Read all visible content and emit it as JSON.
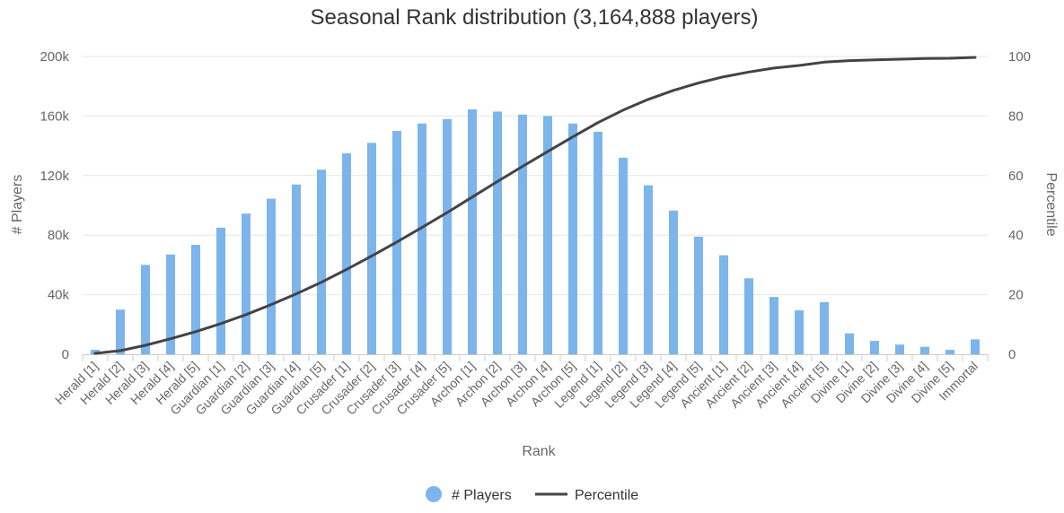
{
  "chart_data": {
    "type": "bar",
    "title": "Seasonal Rank distribution (3,164,888 players)",
    "xlabel": "Rank",
    "ylabel": "# Players",
    "y2label": "Percentile",
    "ylim": [
      0,
      200000
    ],
    "y2lim": [
      0,
      100
    ],
    "yticks": [
      "0",
      "40k",
      "80k",
      "120k",
      "160k",
      "200k"
    ],
    "y2ticks": [
      "0",
      "20",
      "40",
      "60",
      "80",
      "100"
    ],
    "legend_position": "bottom-center",
    "grid": true,
    "categories": [
      "Herald [1]",
      "Herald [2]",
      "Herald [3]",
      "Herald [4]",
      "Herald [5]",
      "Guardian [1]",
      "Guardian [2]",
      "Guardian [3]",
      "Guardian [4]",
      "Guardian [5]",
      "Crusader [1]",
      "Crusader [2]",
      "Crusader [3]",
      "Crusader [4]",
      "Crusader [5]",
      "Archon [1]",
      "Archon [2]",
      "Archon [3]",
      "Archon [4]",
      "Archon [5]",
      "Legend [1]",
      "Legend [2]",
      "Legend [3]",
      "Legend [4]",
      "Legend [5]",
      "Ancient [1]",
      "Ancient [2]",
      "Ancient [3]",
      "Ancient [4]",
      "Ancient [5]",
      "Divine [1]",
      "Divine [2]",
      "Divine [3]",
      "Divine [4]",
      "Divine [5]",
      "Immortal"
    ],
    "series": [
      {
        "name": "# Players",
        "kind": "bar",
        "axis": "left",
        "color": "#7cb5ec",
        "values": [
          3000,
          30000,
          60000,
          67000,
          73500,
          85000,
          94500,
          104500,
          114000,
          124000,
          135000,
          142000,
          150000,
          155000,
          158000,
          164500,
          163000,
          161000,
          160000,
          155000,
          149500,
          132000,
          113500,
          96500,
          79000,
          66500,
          51000,
          38500,
          29500,
          35000,
          14000,
          9000,
          6500,
          5000,
          3000,
          10000
        ]
      },
      {
        "name": "Percentile",
        "kind": "line",
        "axis": "right",
        "color": "#434348",
        "values": [
          0.3,
          1.2,
          3.0,
          5.2,
          7.6,
          10.3,
          13.3,
          16.7,
          20.3,
          24.2,
          28.5,
          33.0,
          37.7,
          42.6,
          47.6,
          52.8,
          58.0,
          63.1,
          68.1,
          73.0,
          77.8,
          82.0,
          85.6,
          88.6,
          91.1,
          93.2,
          94.8,
          96.1,
          97.0,
          98.1,
          98.6,
          98.9,
          99.1,
          99.3,
          99.4,
          99.7
        ]
      }
    ]
  }
}
